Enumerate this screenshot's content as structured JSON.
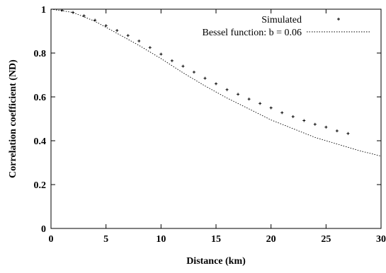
{
  "chart_data": {
    "type": "scatter",
    "title": "",
    "xlabel": "Distance (km)",
    "ylabel": "Correlation coefficient (ND)",
    "xlim": [
      0,
      30
    ],
    "ylim": [
      0,
      1
    ],
    "x_ticks": [
      "0",
      "5",
      "10",
      "15",
      "20",
      "25",
      "30"
    ],
    "y_ticks": [
      "0",
      "0.2",
      "0.4",
      "0.6",
      "0.8",
      "1"
    ],
    "grid": false,
    "legend_position": "top-right",
    "series": [
      {
        "name": "Simulated",
        "kind": "points",
        "marker": "+",
        "x": [
          1,
          2,
          3,
          4,
          5,
          6,
          7,
          8,
          9,
          10,
          11,
          12,
          13,
          14,
          15,
          16,
          17,
          18,
          19,
          20,
          21,
          22,
          23,
          24,
          25,
          26,
          27
        ],
        "y": [
          0.995,
          0.985,
          0.97,
          0.95,
          0.925,
          0.903,
          0.88,
          0.855,
          0.825,
          0.795,
          0.765,
          0.74,
          0.713,
          0.685,
          0.66,
          0.633,
          0.612,
          0.59,
          0.57,
          0.55,
          0.528,
          0.51,
          0.492,
          0.475,
          0.462,
          0.445,
          0.433
        ]
      },
      {
        "name": "Bessel function:  b = 0.06",
        "kind": "line",
        "style": "dotted",
        "x": [
          0,
          2,
          4,
          6,
          8,
          10,
          12,
          14,
          16,
          18,
          20,
          22,
          24,
          26,
          28,
          30
        ],
        "y": [
          1.0,
          0.985,
          0.945,
          0.89,
          0.835,
          0.775,
          0.71,
          0.65,
          0.595,
          0.545,
          0.495,
          0.455,
          0.415,
          0.385,
          0.355,
          0.33
        ]
      }
    ]
  }
}
